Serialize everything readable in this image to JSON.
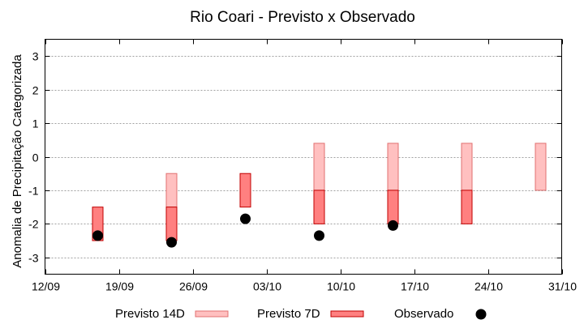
{
  "chart_data": {
    "type": "range-bar",
    "title": "Rio Coari - Previsto x Observado",
    "xlabel": "",
    "ylabel": "Anomalia de Precipitação Categorizada",
    "x_ticks": [
      "12/09",
      "19/09",
      "26/09",
      "03/10",
      "10/10",
      "17/10",
      "24/10",
      "31/10"
    ],
    "xlim_days": [
      0,
      49
    ],
    "y_ticks": [
      3,
      2,
      1,
      0,
      -1,
      -2,
      -3
    ],
    "ylim": [
      -3.5,
      3.5
    ],
    "grid": true,
    "legend_position": "bottom",
    "series": [
      {
        "name": "Previsto 14D",
        "kind": "range",
        "color": "#ffc0c0",
        "border": "#e07070",
        "points": [
          {
            "x_day": 12,
            "low": -1.5,
            "high": -0.5
          },
          {
            "x_day": 26,
            "low": -1.0,
            "high": 0.4
          },
          {
            "x_day": 33,
            "low": -1.0,
            "high": 0.4
          },
          {
            "x_day": 40,
            "low": -1.0,
            "high": 0.4
          },
          {
            "x_day": 47,
            "low": -1.0,
            "high": 0.4
          }
        ]
      },
      {
        "name": "Previsto 7D",
        "kind": "range",
        "color": "#ff8080",
        "border": "#c00000",
        "points": [
          {
            "x_day": 5,
            "low": -2.5,
            "high": -1.5
          },
          {
            "x_day": 12,
            "low": -2.5,
            "high": -1.5
          },
          {
            "x_day": 19,
            "low": -1.5,
            "high": -0.5
          },
          {
            "x_day": 26,
            "low": -2.0,
            "high": -1.0
          },
          {
            "x_day": 33,
            "low": -2.0,
            "high": -1.0
          },
          {
            "x_day": 40,
            "low": -2.0,
            "high": -1.0
          }
        ]
      },
      {
        "name": "Observado",
        "kind": "point",
        "color": "#000000",
        "points": [
          {
            "x_day": 5,
            "y": -2.35
          },
          {
            "x_day": 12,
            "y": -2.55
          },
          {
            "x_day": 19,
            "y": -1.85
          },
          {
            "x_day": 26,
            "y": -2.35
          },
          {
            "x_day": 33,
            "y": -2.05
          }
        ]
      }
    ]
  }
}
